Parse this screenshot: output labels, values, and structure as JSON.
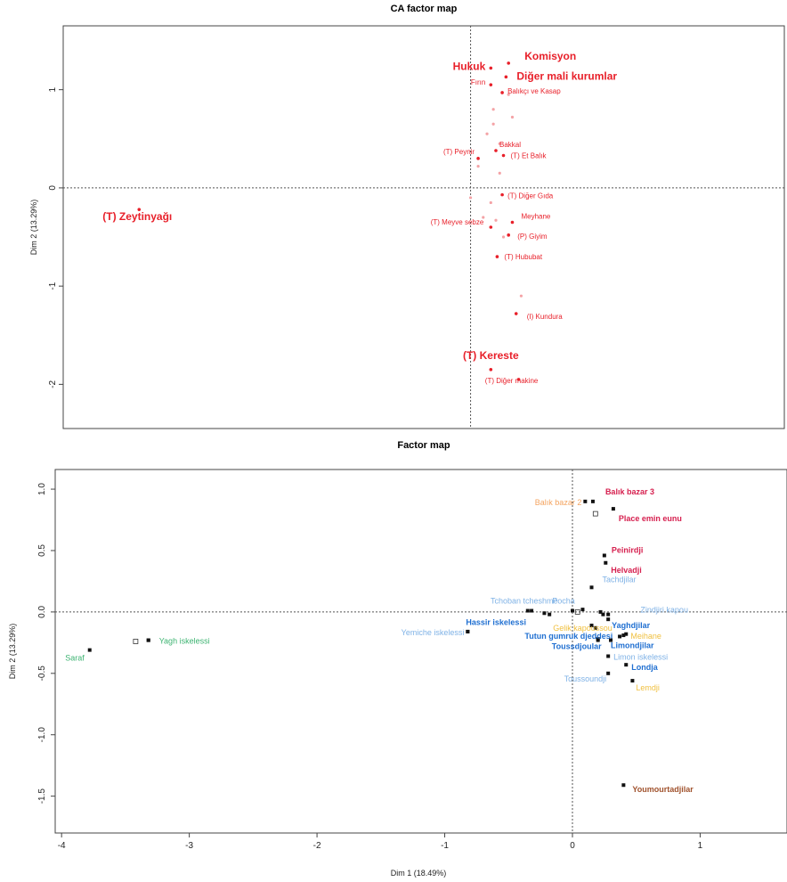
{
  "chart_data": [
    {
      "type": "scatter",
      "title": "CA factor map",
      "xlabel": "",
      "ylabel": "Dim 2 (13.29%)",
      "xlim": [
        -4.1,
        1.6
      ],
      "ylim": [
        -2.45,
        1.65
      ],
      "y_ticks": [
        1,
        0,
        -1,
        -2
      ],
      "y_tick_labels": [
        "1",
        "0",
        "-1",
        "-2"
      ],
      "color": "#e8202a",
      "faint_points": [
        {
          "x": -0.7,
          "y": 0.8
        },
        {
          "x": -0.55,
          "y": 0.72
        },
        {
          "x": -0.7,
          "y": 0.65
        },
        {
          "x": -0.75,
          "y": 0.55
        },
        {
          "x": -0.65,
          "y": 0.45
        },
        {
          "x": -0.82,
          "y": 0.22
        },
        {
          "x": -0.65,
          "y": 0.15
        },
        {
          "x": -0.72,
          "y": -0.15
        },
        {
          "x": -0.78,
          "y": -0.3
        },
        {
          "x": -0.68,
          "y": -0.33
        },
        {
          "x": -0.62,
          "y": -0.5
        },
        {
          "x": -0.48,
          "y": -1.1
        },
        {
          "x": -0.88,
          "y": -0.1
        },
        {
          "x": -0.58,
          "y": 0.95
        }
      ],
      "points": [
        {
          "label": "Komisyon",
          "x": -0.58,
          "y": 1.27,
          "bold": true
        },
        {
          "label": "Hukuk",
          "x": -0.72,
          "y": 1.22,
          "bold": true
        },
        {
          "label": "Diğer mali kurumlar",
          "x": -0.6,
          "y": 1.13,
          "bold": true
        },
        {
          "label": "Fırın",
          "x": -0.72,
          "y": 1.05,
          "bold": false
        },
        {
          "label": "Balıkçı ve Kasap",
          "x": -0.63,
          "y": 0.97,
          "bold": false
        },
        {
          "label": "Bakkal",
          "x": -0.68,
          "y": 0.38,
          "bold": false
        },
        {
          "label": "(T) Peynir",
          "x": -0.82,
          "y": 0.3,
          "bold": false
        },
        {
          "label": "(T) Et Balık",
          "x": -0.62,
          "y": 0.33,
          "bold": false
        },
        {
          "label": "(T) Diğer Gıda",
          "x": -0.63,
          "y": -0.07,
          "bold": false
        },
        {
          "label": "(T) Zeytinyağı",
          "x": -3.5,
          "y": -0.22,
          "bold": true
        },
        {
          "label": "Meyhane",
          "x": -0.55,
          "y": -0.35,
          "bold": false
        },
        {
          "label": "(T) Meyve sebze",
          "x": -0.72,
          "y": -0.4,
          "bold": false
        },
        {
          "label": "(P) Giyim",
          "x": -0.58,
          "y": -0.48,
          "bold": false
        },
        {
          "label": "(T) Hububat",
          "x": -0.67,
          "y": -0.7,
          "bold": false
        },
        {
          "label": "(I) Kundura",
          "x": -0.52,
          "y": -1.28,
          "bold": false
        },
        {
          "label": "(T) Kereste",
          "x": -0.72,
          "y": -1.85,
          "bold": true
        },
        {
          "label": "(T) Diğer makine",
          "x": -0.5,
          "y": -1.95,
          "bold": false
        }
      ]
    },
    {
      "type": "scatter",
      "title": "Factor map",
      "xlabel": "Dim 1 (18.49%)",
      "ylabel": "Dim 2 (13.29%)",
      "xlim": [
        -4.05,
        1.68
      ],
      "ylim": [
        -1.8,
        1.16
      ],
      "x_ticks": [
        -4,
        -3,
        -2,
        -1,
        0,
        1
      ],
      "x_tick_labels": [
        "-4",
        "-3",
        "-2",
        "-1",
        "0",
        "1"
      ],
      "y_ticks": [
        1.0,
        0.5,
        0.0,
        -0.5,
        -1.0,
        -1.5
      ],
      "y_tick_labels": [
        "1.0",
        "0.5",
        "0.0",
        "-0.5",
        "-1.0",
        "-1.5"
      ],
      "extra_points": [
        {
          "x": -3.32,
          "y": -0.23,
          "hollow": false
        },
        {
          "x": -0.82,
          "y": -0.16,
          "hollow": false
        },
        {
          "x": -0.32,
          "y": 0.01,
          "hollow": false
        },
        {
          "x": -0.22,
          "y": -0.01,
          "hollow": false
        },
        {
          "x": 0.08,
          "y": 0.02,
          "hollow": false
        },
        {
          "x": 0.2,
          "y": -0.22,
          "hollow": false
        },
        {
          "x": 0.22,
          "y": 0.0,
          "hollow": false
        },
        {
          "x": 0.28,
          "y": -0.02,
          "hollow": false
        },
        {
          "x": 0.37,
          "y": -0.2,
          "hollow": false
        },
        {
          "x": 0.42,
          "y": -0.18,
          "hollow": false
        },
        {
          "x": -3.42,
          "y": -0.24,
          "hollow": true
        },
        {
          "x": 0.18,
          "y": 0.8,
          "hollow": true
        },
        {
          "x": 0.04,
          "y": 0.0,
          "hollow": true
        }
      ],
      "points": [
        {
          "label": "Balık bazar 3",
          "x": 0.16,
          "y": 0.9,
          "color": "#d6204f",
          "bold": true
        },
        {
          "label": "Balık bazar 2",
          "x": 0.1,
          "y": 0.9,
          "color": "#f4a460",
          "bold": false
        },
        {
          "label": "Place emin eunu",
          "x": 0.32,
          "y": 0.84,
          "color": "#d6204f",
          "bold": true
        },
        {
          "label": "Peinirdji",
          "x": 0.25,
          "y": 0.46,
          "color": "#d6204f",
          "bold": true
        },
        {
          "label": "Helvadji",
          "x": 0.26,
          "y": 0.4,
          "color": "#d6204f",
          "bold": true
        },
        {
          "label": "Tachdjilar",
          "x": 0.15,
          "y": 0.2,
          "color": "#7fb2e6",
          "bold": false
        },
        {
          "label": "Tchoban tcheshme",
          "x": -0.35,
          "y": 0.01,
          "color": "#7fb2e6",
          "bold": false
        },
        {
          "label": "Pocha",
          "x": 0.0,
          "y": 0.01,
          "color": "#7fb2e6",
          "bold": false
        },
        {
          "label": "Zindjiri kapou",
          "x": 0.24,
          "y": -0.02,
          "color": "#7fb2e6",
          "bold": false
        },
        {
          "label": "Yaghdjilar",
          "x": 0.28,
          "y": -0.06,
          "color": "#1f6fd1",
          "bold": true
        },
        {
          "label": "Hassir iskelessi",
          "x": -0.18,
          "y": -0.02,
          "color": "#1f6fd1",
          "bold": true
        },
        {
          "label": "Tutun gumruk djeddesi",
          "x": 0.18,
          "y": -0.13,
          "color": "#1f6fd1",
          "bold": true
        },
        {
          "label": "Toussdjoular",
          "x": 0.2,
          "y": -0.23,
          "color": "#1f6fd1",
          "bold": true
        },
        {
          "label": "Yemiche iskelessi",
          "x": -0.82,
          "y": -0.16,
          "color": "#7fb2e6",
          "bold": false
        },
        {
          "label": "Gelik kapoussou",
          "x": 0.15,
          "y": -0.11,
          "color": "#f0c040",
          "bold": false
        },
        {
          "label": "Meihane",
          "x": 0.4,
          "y": -0.19,
          "color": "#f0c040",
          "bold": false
        },
        {
          "label": "Limondjilar",
          "x": 0.3,
          "y": -0.23,
          "color": "#1f6fd1",
          "bold": true
        },
        {
          "label": "Limon iskelessi",
          "x": 0.28,
          "y": -0.36,
          "color": "#7fb2e6",
          "bold": false
        },
        {
          "label": "Londja",
          "x": 0.42,
          "y": -0.43,
          "color": "#1f6fd1",
          "bold": true
        },
        {
          "label": "Toussoundji",
          "x": 0.28,
          "y": -0.5,
          "color": "#7fb2e6",
          "bold": false
        },
        {
          "label": "Lemdji",
          "x": 0.47,
          "y": -0.56,
          "color": "#f0c040",
          "bold": false
        },
        {
          "label": "Yagh iskelessi",
          "x": -3.32,
          "y": -0.23,
          "color": "#3cb371",
          "bold": false
        },
        {
          "label": "Saraf",
          "x": -3.78,
          "y": -0.31,
          "color": "#3cb371",
          "bold": false
        },
        {
          "label": "Youmourtadjilar",
          "x": 0.4,
          "y": -1.41,
          "color": "#a0522d",
          "bold": true
        }
      ]
    }
  ]
}
